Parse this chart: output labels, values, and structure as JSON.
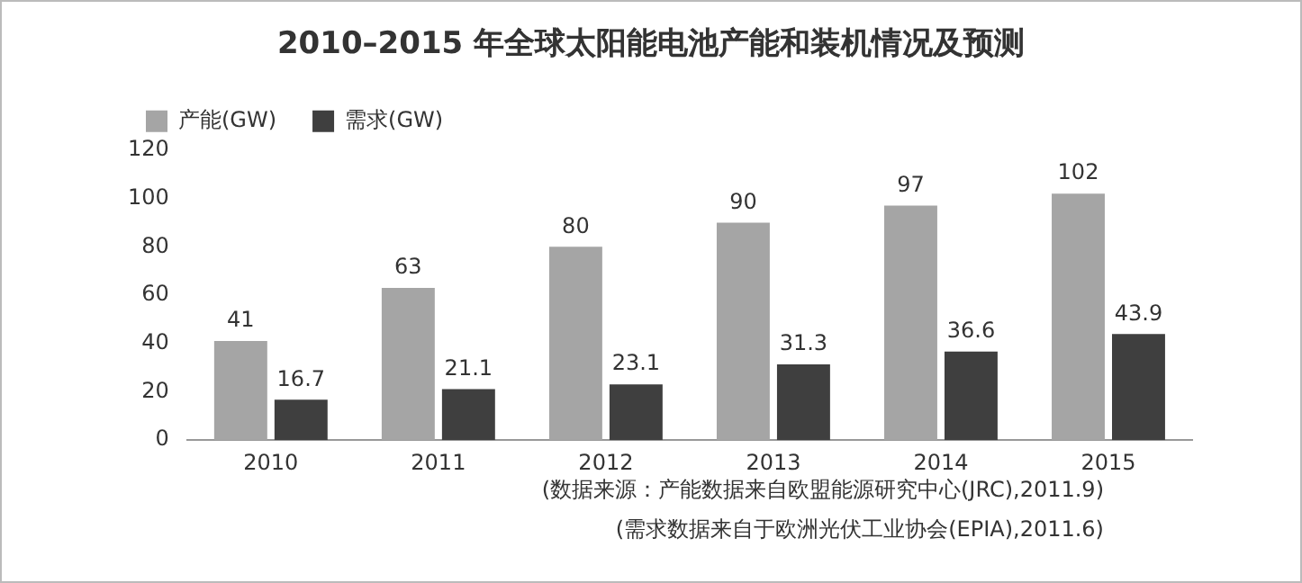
{
  "chart_data": {
    "type": "bar",
    "title": "2010–2015 年全球太阳能电池产能和装机情况及预测",
    "categories": [
      "2010",
      "2011",
      "2012",
      "2013",
      "2014",
      "2015"
    ],
    "series": [
      {
        "name": "产能(GW)",
        "color": "#a5a5a5",
        "values": [
          41,
          63,
          80,
          90,
          97,
          102
        ]
      },
      {
        "name": "需求(GW)",
        "color": "#3f3f3f",
        "values": [
          16.7,
          21.1,
          23.1,
          31.3,
          36.6,
          43.9
        ]
      }
    ],
    "ylim": [
      0,
      120
    ],
    "yticks": [
      0,
      20,
      40,
      60,
      80,
      100,
      120
    ],
    "grid": false,
    "legend": "top left",
    "data_labels": true,
    "annotations": [
      "(数据来源：产能数据来自欧盟能源研究中心(JRC),2011.9)",
      "(需求数据来自于欧洲光伏工业协会(EPIA),2011.6)"
    ]
  }
}
